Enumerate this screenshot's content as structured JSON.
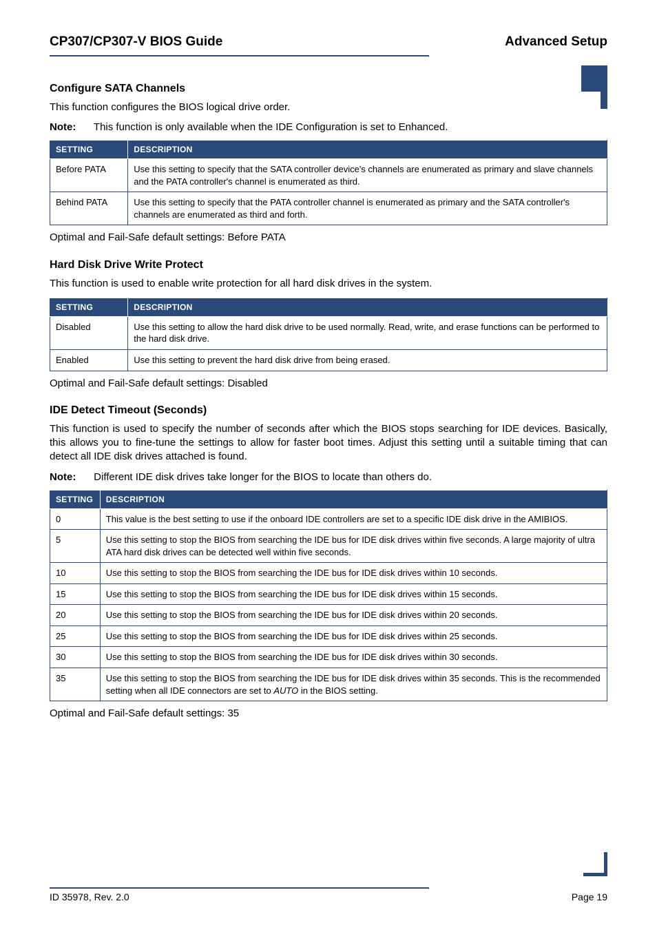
{
  "header": {
    "left": "CP307/CP307-V BIOS Guide",
    "right": "Advanced Setup"
  },
  "sections": {
    "sata": {
      "title": "Configure SATA Channels",
      "intro": "This function configures the BIOS logical drive order.",
      "note": "This function is only available when the IDE Configuration is set to Enhanced.",
      "table": {
        "head_setting": "SETTING",
        "head_desc": "DESCRIPTION",
        "rows": [
          {
            "s": "Before PATA",
            "d": "Use this setting to specify that the SATA controller device's channels are enumerated as primary and slave channels and the PATA controller's channel is enumerated as third."
          },
          {
            "s": "Behind PATA",
            "d": "Use this setting to specify that the PATA controller channel is enumerated as primary and the SATA controller's channels are enumerated as third and forth."
          }
        ]
      },
      "default": "Optimal and Fail-Safe default settings: Before PATA"
    },
    "hdd": {
      "title": "Hard Disk Drive Write Protect",
      "intro": "This function is used to enable write protection for all hard disk drives in the system.",
      "table": {
        "head_setting": "SETTING",
        "head_desc": "DESCRIPTION",
        "rows": [
          {
            "s": "Disabled",
            "d": "Use this setting to allow the hard disk drive to be used normally. Read, write, and erase functions can be performed to the hard disk drive."
          },
          {
            "s": "Enabled",
            "d": "Use this setting to prevent the hard disk drive from being erased."
          }
        ]
      },
      "default": "Optimal and Fail-Safe default settings: Disabled"
    },
    "ide": {
      "title": "IDE Detect Timeout (Seconds)",
      "intro": "This function is used to specify the number of seconds after which the BIOS stops searching for IDE devices. Basically, this allows you to fine-tune the settings to allow for faster boot times. Adjust this setting until a suitable timing that can detect all IDE disk drives attached is found.",
      "note": "Different IDE disk drives take longer for the BIOS to locate than others do.",
      "table": {
        "head_setting": "SETTING",
        "head_desc": "DESCRIPTION",
        "rows": [
          {
            "s": "0",
            "d": "This value is the best setting to use if the onboard IDE controllers are set to a specific IDE disk drive in the AMIBIOS."
          },
          {
            "s": "5",
            "d": "Use this setting to stop the BIOS from searching the IDE bus for IDE disk drives within five seconds. A large majority of ultra ATA hard disk drives can be detected well within five seconds."
          },
          {
            "s": "10",
            "d": "Use this setting to stop the BIOS from searching the IDE bus for IDE disk drives within 10 seconds."
          },
          {
            "s": "15",
            "d": "Use this setting to stop the BIOS from searching the IDE bus for IDE disk drives within 15 seconds."
          },
          {
            "s": "20",
            "d": "Use this setting to stop the BIOS from searching the IDE bus for IDE disk drives within 20 seconds."
          },
          {
            "s": "25",
            "d": "Use this setting to stop the BIOS from searching the IDE bus for IDE disk drives within 25 seconds."
          },
          {
            "s": "30",
            "d": "Use this setting to stop the BIOS from searching the IDE bus for IDE disk drives within 30 seconds."
          },
          {
            "s": "35",
            "d": "Use this setting to stop the BIOS from searching the IDE bus for IDE disk drives within 35 seconds. This is the recommended setting when all IDE connectors are set to AUTO in the BIOS setting.",
            "italic_word": "AUTO"
          }
        ]
      },
      "default": "Optimal and Fail-Safe default settings: 35"
    }
  },
  "footer": {
    "left": "ID 35978, Rev. 2.0",
    "right": "Page 19"
  },
  "note_label": "Note:",
  "colors": {
    "accent": "#2b4a7a",
    "text": "#000000",
    "bg": "#ffffff"
  }
}
